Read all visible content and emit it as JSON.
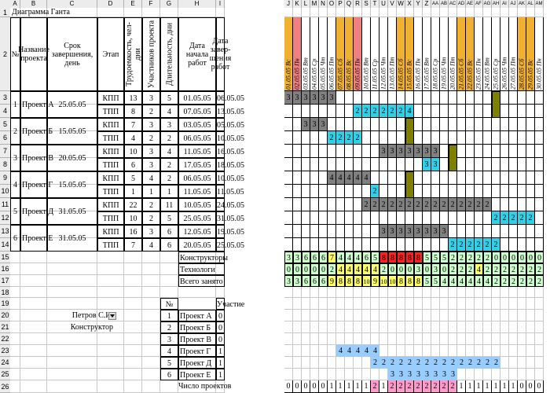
{
  "columns": [
    "A",
    "B",
    "C",
    "D",
    "E",
    "F",
    "G",
    "H",
    "I",
    "J",
    "K",
    "L",
    "M",
    "N",
    "O",
    "P",
    "Q",
    "R",
    "S",
    "T",
    "U",
    "V",
    "W",
    "X",
    "Y",
    "Z",
    "AA",
    "AB",
    "AC",
    "AD",
    "AE",
    "AF",
    "AG",
    "AH",
    "AI",
    "AJ",
    "AK",
    "AL",
    "AM"
  ],
  "rows": [
    "1",
    "2",
    "3",
    "4",
    "5",
    "6",
    "7",
    "8",
    "9",
    "10",
    "11",
    "12",
    "13",
    "14",
    "15",
    "16",
    "17",
    "18",
    "19",
    "20",
    "21",
    "22",
    "23",
    "24",
    "25",
    "26"
  ],
  "title": "Диаграмма Ганта",
  "headers": {
    "num": "№",
    "project_name": "Название проекта",
    "deadline": "Срок завершения, день",
    "stage": "Этап",
    "labor": "Трудоемкость, чел-дни",
    "members": "Участников проекта",
    "duration": "Длительность, дни",
    "start": "Дата начала работ",
    "end": "Дата завер-шения работ"
  },
  "dates": [
    "01.05.05 Вс",
    "02.05.05 Пн",
    "03.05.05 Вт",
    "04.05.05 Ср",
    "05.05.05 Чт",
    "06.05.05 Пт",
    "07.05.05 Сб",
    "08.05.05 Вс",
    "09.05.05 Пн",
    "10.05.05 Вт",
    "11.05.05 Ср",
    "12.05.05 Чт",
    "13.05.05 Пт",
    "14.05.05 Сб",
    "15.05.05 Вс",
    "16.05.05 Пн",
    "17.05.05 Вт",
    "18.05.05 Ср",
    "19.05.05 Чт",
    "20.05.05 Пт",
    "21.05.05 Сб",
    "22.05.05 Вс",
    "23.05.05 Пн",
    "24.05.05 Вт",
    "25.05.05 Ср",
    "26.05.05 Чт",
    "27.05.05 Пт",
    "28.05.05 Сб",
    "29.05.05 Вс",
    "30.05.05 Пн"
  ],
  "projects": [
    {
      "num": "1",
      "name": "Проект А",
      "deadline": "25.05.05"
    },
    {
      "num": "2",
      "name": "Проект Б",
      "deadline": "15.05.05"
    },
    {
      "num": "3",
      "name": "Проект В",
      "deadline": "20.05.05"
    },
    {
      "num": "4",
      "name": "Проект Г",
      "deadline": "15.05.05"
    },
    {
      "num": "5",
      "name": "Проект Д",
      "deadline": "31.05.05"
    },
    {
      "num": "6",
      "name": "Проект Е",
      "deadline": "31.05.05"
    }
  ],
  "stages": [
    {
      "stage": "КПП",
      "labor": "13",
      "members": "3",
      "duration": "5",
      "start": "01.05.05",
      "end": "06.05.05"
    },
    {
      "stage": "ТПП",
      "labor": "8",
      "members": "2",
      "duration": "4",
      "start": "07.05.05",
      "end": "13.05.05"
    },
    {
      "stage": "КПП",
      "labor": "7",
      "members": "3",
      "duration": "3",
      "start": "03.05.05",
      "end": "05.05.05"
    },
    {
      "stage": "ТПП",
      "labor": "4",
      "members": "2",
      "duration": "2",
      "start": "06.05.05",
      "end": "10.05.05"
    },
    {
      "stage": "КПП",
      "labor": "10",
      "members": "3",
      "duration": "4",
      "start": "11.05.05",
      "end": "16.05.05"
    },
    {
      "stage": "ТПП",
      "labor": "6",
      "members": "3",
      "duration": "2",
      "start": "17.05.05",
      "end": "18.05.05"
    },
    {
      "stage": "КПП",
      "labor": "5",
      "members": "4",
      "duration": "2",
      "start": "06.05.05",
      "end": "10.05.05"
    },
    {
      "stage": "ТПП",
      "labor": "1",
      "members": "1",
      "duration": "1",
      "start": "11.05.05",
      "end": "11.05.05"
    },
    {
      "stage": "КПП",
      "labor": "22",
      "members": "2",
      "duration": "11",
      "start": "10.05.05",
      "end": "24.05.05"
    },
    {
      "stage": "ТПП",
      "labor": "10",
      "members": "2",
      "duration": "5",
      "start": "25.05.05",
      "end": "31.05.05"
    },
    {
      "stage": "КПП",
      "labor": "16",
      "members": "3",
      "duration": "6",
      "start": "12.05.05",
      "end": "19.05.05"
    },
    {
      "stage": "ТПП",
      "labor": "7",
      "members": "4",
      "duration": "6",
      "start": "20.05.05",
      "end": "25.05.05"
    }
  ],
  "gantt_rows": [
    "33333300000000000000000000000",
    "00000000222222400000000000000",
    "00333000000000000000000000000",
    "00000222200000000000000000000",
    "00000000000333333300000000000",
    "00000000000000003300000000000",
    "00000444440000000000000000000",
    "00000000002000000000000000000",
    "00000000022222222222222200000",
    "00000000000000000000000022222",
    "00000000000333333330000000000",
    "00000000000000000002222220000"
  ],
  "summary_labels": [
    "Конструкторы",
    "Технологи",
    "Всего занято"
  ],
  "summary_values": [
    [
      "3",
      "3",
      "6",
      "6",
      "6",
      "7",
      "4",
      "4",
      "4",
      "6",
      "5",
      "8",
      "8",
      "8",
      "8",
      "8",
      "5",
      "5",
      "5",
      "2",
      "2",
      "2",
      "2",
      "2",
      "0",
      "0",
      "0",
      "0",
      "0",
      "0"
    ],
    [
      "0",
      "0",
      "0",
      "0",
      "0",
      "2",
      "4",
      "4",
      "4",
      "4",
      "4",
      "2",
      "0",
      "0",
      "0",
      "3",
      "0",
      "3",
      "0",
      "2",
      "2",
      "2",
      "4",
      "2",
      "2",
      "2",
      "2",
      "2",
      "2",
      "2"
    ],
    [
      "3",
      "3",
      "6",
      "6",
      "6",
      "9",
      "8",
      "8",
      "8",
      "10",
      "9",
      "10",
      "10",
      "8",
      "8",
      "8",
      "5",
      "5",
      "4",
      "4",
      "4",
      "4",
      "4",
      "4",
      "2",
      "2",
      "2",
      "2",
      "2",
      "2"
    ]
  ],
  "person": {
    "name": "Петров С.И.",
    "role": "Конструктор"
  },
  "participation": {
    "num_header": "№",
    "header": "Участие",
    "rows": [
      {
        "n": "1",
        "project": "Проект А",
        "value": "0"
      },
      {
        "n": "2",
        "project": "Проект Б",
        "value": "0"
      },
      {
        "n": "3",
        "project": "Проект В",
        "value": "0"
      },
      {
        "n": "4",
        "project": "Проект Г",
        "value": "1"
      },
      {
        "n": "5",
        "project": "Проект Д",
        "value": "1"
      },
      {
        "n": "6",
        "project": "Проект Е",
        "value": "1"
      }
    ],
    "gantt": [
      "000000000000000000000000000000",
      "000000000000000000000000000000",
      "000000000000000000000000000000",
      "000000444440000000000000000000",
      "000000000022222222222222200000",
      "000000000000333333330000000000"
    ],
    "count_label": "Число проектов",
    "counts": [
      "0",
      "0",
      "0",
      "0",
      "0",
      "1",
      "1",
      "1",
      "1",
      "1",
      "2",
      "1",
      "2",
      "2",
      "2",
      "2",
      "2",
      "2",
      "2",
      "2",
      "1",
      "1",
      "1",
      "1",
      "1",
      "1",
      "1",
      "0",
      "0",
      "0"
    ]
  },
  "colors": {
    "weekend": "#f0b030",
    "holiday": "#f08080",
    "kpp": "#808080",
    "tpp": "#30d0e8",
    "marker": "#808000",
    "summary_green": "#ccffcc",
    "summary_yellow": "#ffff66",
    "summary_red": "#ff2020",
    "blue_bar": "#99ccff",
    "pink": "#ff99cc"
  },
  "icons": {
    "dropdown": "dropdown-arrow-icon"
  }
}
